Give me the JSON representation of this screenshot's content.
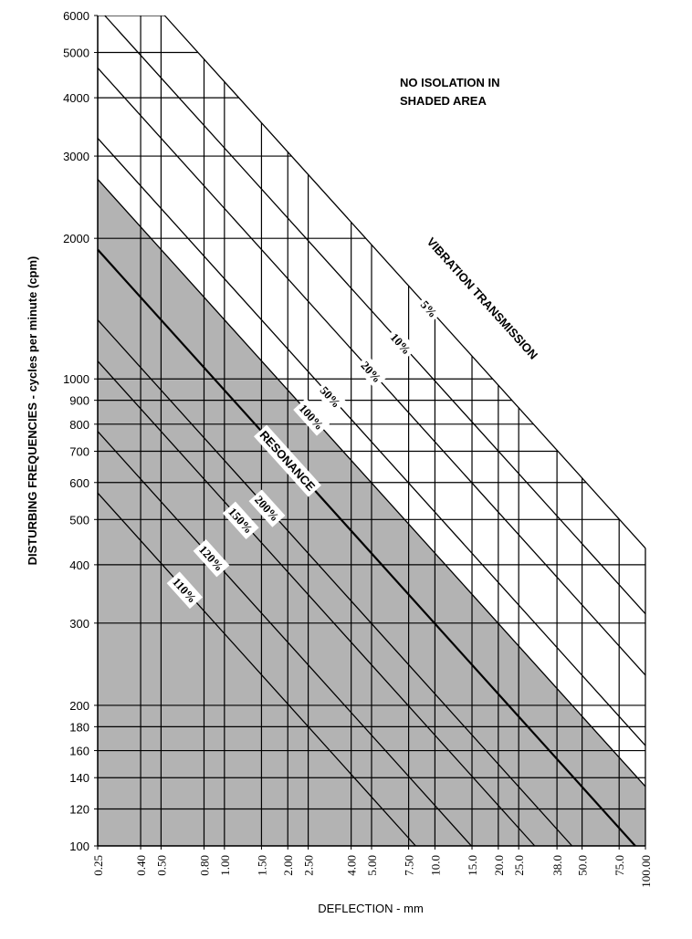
{
  "chart_data": {
    "type": "line",
    "title_note": [
      "NO ISOLATION IN",
      "SHADED AREA"
    ],
    "curve_group_label": "VIBRATION TRANSMISSION",
    "x_label": "DEFLECTION - mm",
    "y_label": "DISTURBING FREQUENCIES - cycles per minute (cpm)",
    "xscale": "log",
    "yscale": "log",
    "xlim": [
      0.25,
      100
    ],
    "ylim": [
      100,
      6000
    ],
    "xticks": [
      {
        "value": 0.25,
        "label": "0.25"
      },
      {
        "value": 0.4,
        "label": "0.40"
      },
      {
        "value": 0.5,
        "label": "0.50"
      },
      {
        "value": 0.8,
        "label": "0.80"
      },
      {
        "value": 1,
        "label": "1.00"
      },
      {
        "value": 1.5,
        "label": "1.50"
      },
      {
        "value": 2,
        "label": "2.00"
      },
      {
        "value": 2.5,
        "label": "2.50"
      },
      {
        "value": 4,
        "label": "4.00"
      },
      {
        "value": 5,
        "label": "5.00"
      },
      {
        "value": 7.5,
        "label": "7.50"
      },
      {
        "value": 10,
        "label": "10.0"
      },
      {
        "value": 15,
        "label": "15.0"
      },
      {
        "value": 20,
        "label": "20.0"
      },
      {
        "value": 25,
        "label": "25.0"
      },
      {
        "value": 38,
        "label": "38.0"
      },
      {
        "value": 50,
        "label": "50.0"
      },
      {
        "value": 75,
        "label": "75.0"
      },
      {
        "value": 100,
        "label": "100.00"
      }
    ],
    "yticks": [
      100,
      120,
      140,
      160,
      180,
      200,
      300,
      400,
      500,
      600,
      700,
      800,
      900,
      1000,
      2000,
      3000,
      4000,
      5000,
      6000
    ],
    "grid": true,
    "shade_color": "#b3b3b3",
    "series": [
      {
        "name": "5%",
        "color": "#000000",
        "x": [
          0.52,
          100
        ],
        "values": [
          6000,
          434
        ]
      },
      {
        "name": "10%",
        "color": "#000000",
        "x": [
          0.27,
          100
        ],
        "values": [
          6000,
          314
        ]
      },
      {
        "name": "20%",
        "color": "#000000",
        "x": [
          0.25,
          100
        ],
        "values": [
          4634,
          232
        ]
      },
      {
        "name": "50%",
        "color": "#000000",
        "x": [
          0.25,
          100
        ],
        "values": [
          3277,
          164
        ]
      },
      {
        "name": "100%",
        "color": "#000000",
        "x": [
          0.25,
          100
        ],
        "values": [
          2676,
          134
        ],
        "shaded": true
      },
      {
        "name": "RESONANCE",
        "color": "#000000",
        "x": [
          0.25,
          89.5
        ],
        "values": [
          1892,
          100
        ]
      },
      {
        "name": "200%",
        "color": "#000000",
        "x": [
          0.25,
          44.8
        ],
        "values": [
          1338,
          100
        ]
      },
      {
        "name": "150%",
        "color": "#000000",
        "x": [
          0.25,
          29.8
        ],
        "values": [
          1092,
          100
        ]
      },
      {
        "name": "120%",
        "color": "#000000",
        "x": [
          0.25,
          14.9
        ],
        "values": [
          772,
          100
        ]
      },
      {
        "name": "110%",
        "color": "#000000",
        "x": [
          0.25,
          8.1
        ],
        "values": [
          570,
          100
        ]
      }
    ]
  }
}
